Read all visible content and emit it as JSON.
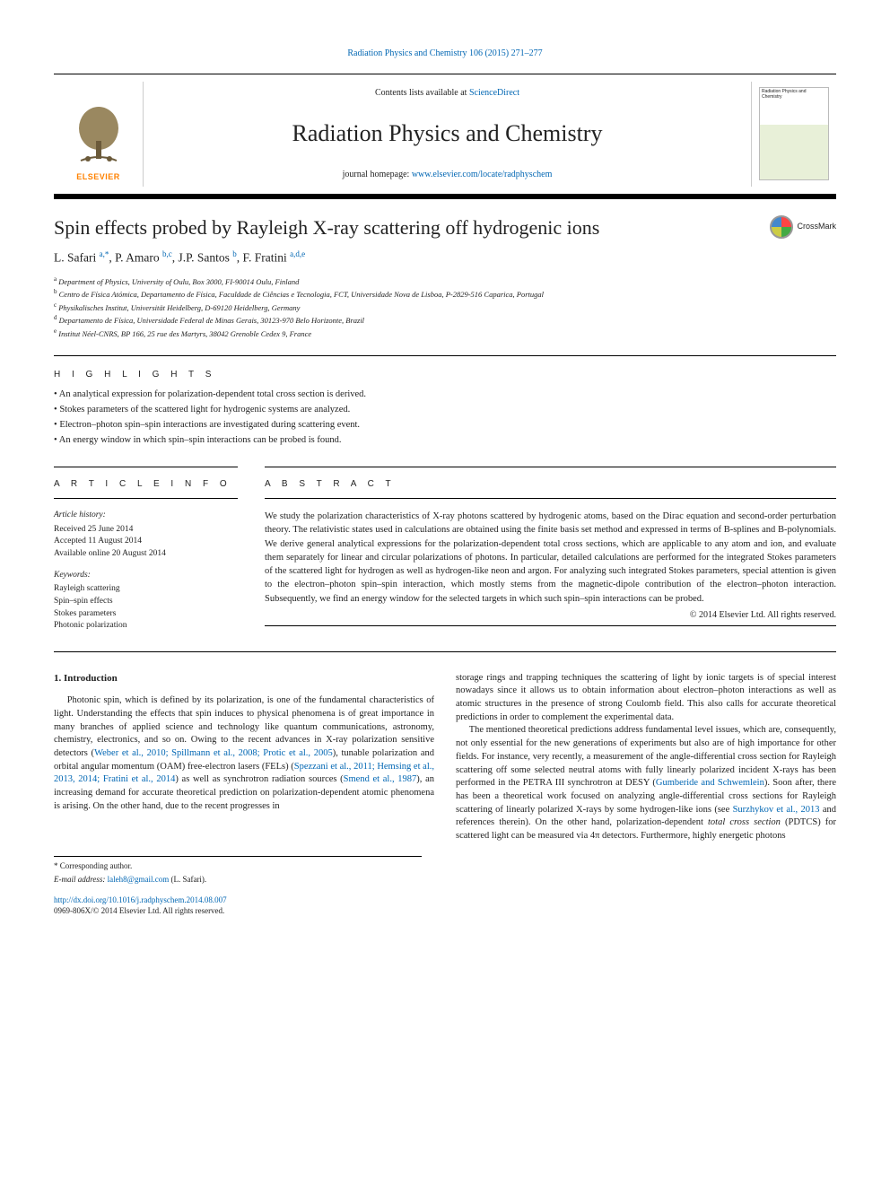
{
  "header": {
    "citation": "Radiation Physics and Chemistry 106 (2015) 271–277",
    "contents_prefix": "Contents lists available at ",
    "contents_link": "ScienceDirect",
    "journal": "Radiation Physics and Chemistry",
    "homepage_prefix": "journal homepage: ",
    "homepage_link": "www.elsevier.com/locate/radphyschem",
    "publisher": "ELSEVIER",
    "cover_label": "Radiation Physics and Chemistry"
  },
  "article": {
    "title": "Spin effects probed by Rayleigh X-ray scattering off hydrogenic ions",
    "crossmark": "CrossMark",
    "authors_html": "L. Safari <sup>a,</sup><a href='#'><sup>*</sup></a>, P. Amaro <sup>b,c</sup>, J.P. Santos <sup>b</sup>, F. Fratini <sup>a,d,e</sup>",
    "affiliations": [
      {
        "sup": "a",
        "text": "Department of Physics, University of Oulu, Box 3000, FI-90014 Oulu, Finland"
      },
      {
        "sup": "b",
        "text": "Centro de Física Atómica, Departamento de Física, Faculdade de Ciências e Tecnologia, FCT, Universidade Nova de Lisboa, P-2829-516 Caparica, Portugal"
      },
      {
        "sup": "c",
        "text": "Physikalisches Institut, Universität Heidelberg, D-69120 Heidelberg, Germany"
      },
      {
        "sup": "d",
        "text": "Departamento de Física, Universidade Federal de Minas Gerais, 30123-970 Belo Horizonte, Brazil"
      },
      {
        "sup": "e",
        "text": "Institut Néel-CNRS, BP 166, 25 rue des Martyrs, 38042 Grenoble Cedex 9, France"
      }
    ]
  },
  "highlights": {
    "label": "H I G H L I G H T S",
    "items": [
      "An analytical expression for polarization-dependent total cross section is derived.",
      "Stokes parameters of the scattered light for hydrogenic systems are analyzed.",
      "Electron–photon spin–spin interactions are investigated during scattering event.",
      "An energy window in which spin–spin interactions can be probed is found."
    ]
  },
  "info": {
    "label": "A R T I C L E  I N F O",
    "history_head": "Article history:",
    "received": "Received 25 June 2014",
    "accepted": "Accepted 11 August 2014",
    "online": "Available online 20 August 2014",
    "keywords_head": "Keywords:",
    "keywords": [
      "Rayleigh scattering",
      "Spin–spin effects",
      "Stokes parameters",
      "Photonic polarization"
    ]
  },
  "abstract": {
    "label": "A B S T R A C T",
    "text": "We study the polarization characteristics of X-ray photons scattered by hydrogenic atoms, based on the Dirac equation and second-order perturbation theory. The relativistic states used in calculations are obtained using the finite basis set method and expressed in terms of B-splines and B-polynomials. We derive general analytical expressions for the polarization-dependent total cross sections, which are applicable to any atom and ion, and evaluate them separately for linear and circular polarizations of photons. In particular, detailed calculations are performed for the integrated Stokes parameters of the scattered light for hydrogen as well as hydrogen-like neon and argon. For analyzing such integrated Stokes parameters, special attention is given to the electron–photon spin–spin interaction, which mostly stems from the magnetic-dipole contribution of the electron–photon interaction. Subsequently, we find an energy window for the selected targets in which such spin–spin interactions can be probed.",
    "copyright": "© 2014 Elsevier Ltd. All rights reserved."
  },
  "body": {
    "sec1_head": "1.  Introduction",
    "left_para": "Photonic spin, which is defined by its polarization, is one of the fundamental characteristics of light. Understanding the effects that spin induces to physical phenomena is of great importance in many branches of applied science and technology like quantum communications, astronomy, chemistry, electronics, and so on. Owing to the recent advances in X-ray polarization sensitive detectors (<span class='ref'>Weber et al., 2010; Spillmann et al., 2008; Protic et al., 2005</span>), tunable polarization and orbital angular momentum (OAM) free-electron lasers (FELs) (<span class='ref'>Spezzani et al., 2011; Hemsing et al., 2013, 2014; Fratini et al., 2014</span>) as well as synchrotron radiation sources (<span class='ref'>Smend et al., 1987</span>), an increasing demand for accurate theoretical prediction on polarization-dependent atomic phenomena is arising. On the other hand, due to the recent progresses in",
    "right_para1": "storage rings and trapping techniques the scattering of light by ionic targets is of special interest nowadays since it allows us to obtain information about electron–photon interactions as well as atomic structures in the presence of strong Coulomb field. This also calls for accurate theoretical predictions in order to complement the experimental data.",
    "right_para2": "The mentioned theoretical predictions address fundamental level issues, which are, consequently, not only essential for the new generations of experiments but also are of high importance for other fields. For instance, very recently, a measurement of the angle-differential cross section for Rayleigh scattering off some selected neutral atoms with fully linearly polarized incident X-rays has been performed in the PETRA III synchrotron at DESY (<span class='ref'>Gumberide and Schwemlein</span>). Soon after, there has been a theoretical work focused on analyzing angle-differential cross sections for Rayleigh scattering of linearly polarized X-rays by some hydrogen-like ions (see <span class='ref'>Surzhykov et al., 2013</span> and references therein). On the other hand, polarization-dependent <i>total cross section</i> (PDTCS) for scattered light can be measured via 4π detectors. Furthermore, highly energetic photons"
  },
  "footer": {
    "corr_label": "* Corresponding author.",
    "email_label": "E-mail address: ",
    "email": "laleh8@gmail.com",
    "email_who": " (L. Safari).",
    "doi": "http://dx.doi.org/10.1016/j.radphyschem.2014.08.007",
    "issn_line": "0969-806X/© 2014 Elsevier Ltd. All rights reserved."
  },
  "colors": {
    "link": "#0066b3",
    "elsevier_orange": "#ff8200",
    "text": "#222222"
  }
}
